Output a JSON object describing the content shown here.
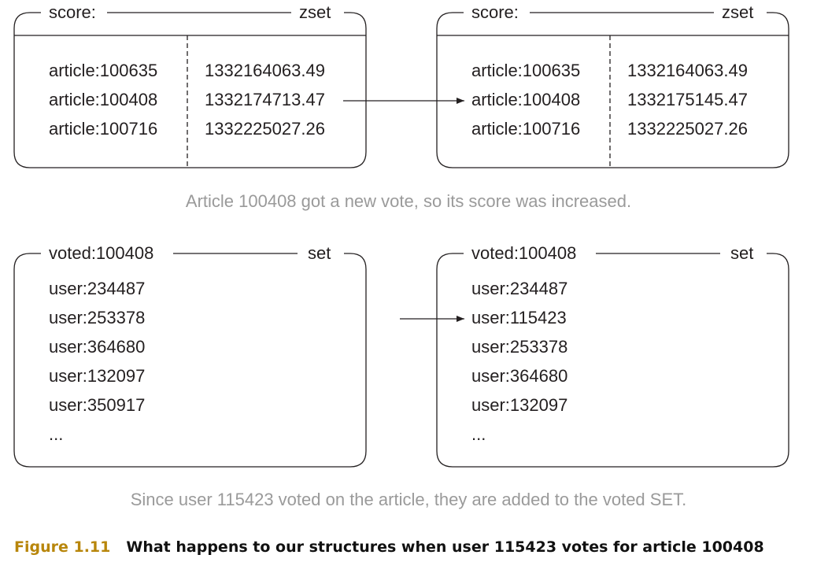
{
  "top_left": {
    "name": "score:",
    "type": "zset",
    "members": [
      "article:100635",
      "article:100408",
      "article:100716"
    ],
    "scores": [
      "1332164063.49",
      "1332174713.47",
      "1332225027.26"
    ]
  },
  "top_right": {
    "name": "score:",
    "type": "zset",
    "members": [
      "article:100635",
      "article:100408",
      "article:100716"
    ],
    "scores": [
      "1332164063.49",
      "1332175145.47",
      "1332225027.26"
    ]
  },
  "top_caption": "Article 100408 got a new vote, so its score was increased.",
  "bottom_left": {
    "name": "voted:100408",
    "type": "set",
    "members": [
      "user:234487",
      "user:253378",
      "user:364680",
      "user:132097",
      "user:350917",
      "..."
    ]
  },
  "bottom_right": {
    "name": "voted:100408",
    "type": "set",
    "members": [
      "user:234487",
      "user:115423",
      "user:253378",
      "user:364680",
      "user:132097",
      "..."
    ]
  },
  "bottom_caption": "Since user 115423 voted on the article, they are added to the voted SET.",
  "figure": {
    "number": "Figure 1.11",
    "title": "What happens to our structures when user 115423 votes for article 100408"
  }
}
